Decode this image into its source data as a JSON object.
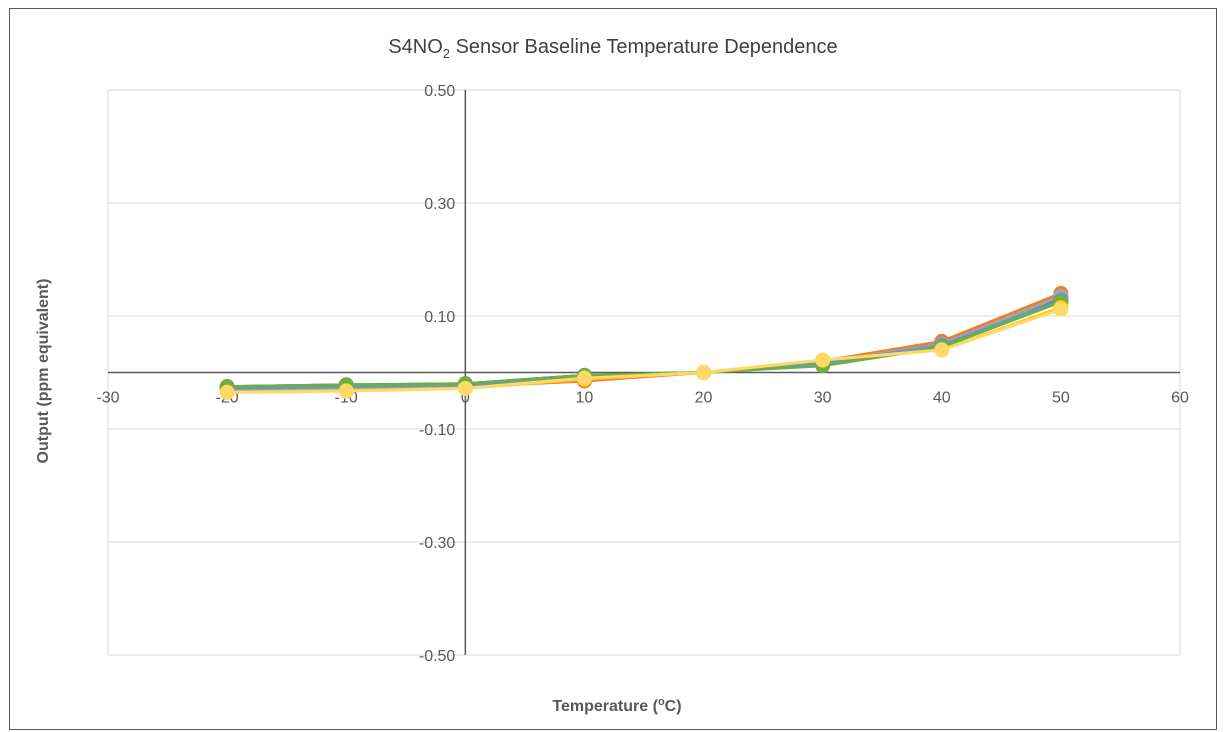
{
  "chart_data": {
    "type": "line",
    "title": {
      "prefix": "S4NO",
      "subscript": "2",
      "suffix": " Sensor Baseline Temperature Dependence"
    },
    "xlabel": {
      "prefix": "Temperature (",
      "superscript": "o",
      "suffix": "C)"
    },
    "ylabel": "Output (ppm equivalent)",
    "xlim": [
      -30,
      60
    ],
    "ylim": [
      -0.5,
      0.5
    ],
    "x_ticks": [
      -30,
      -20,
      -10,
      0,
      10,
      20,
      30,
      40,
      50,
      60
    ],
    "y_ticks": [
      -0.5,
      -0.3,
      -0.1,
      0.1,
      0.3,
      0.5
    ],
    "y_tick_labels": [
      "-0.50",
      "-0.30",
      "-0.10",
      "0.10",
      "0.30",
      "0.50"
    ],
    "grid": "horizontal",
    "legend": "none",
    "x": [
      -20,
      -10,
      0,
      10,
      20,
      30,
      40,
      50
    ],
    "series": [
      {
        "color": "#264478",
        "values": [
          -0.025,
          -0.022,
          -0.02,
          -0.005,
          0.0,
          0.015,
          0.048,
          0.13
        ]
      },
      {
        "color": "#ED7D31",
        "values": [
          -0.03,
          -0.03,
          -0.025,
          -0.015,
          0.0,
          0.02,
          0.055,
          0.14
        ]
      },
      {
        "color": "#A5A5A5",
        "values": [
          -0.032,
          -0.028,
          -0.024,
          -0.008,
          0.0,
          0.018,
          0.05,
          0.135
        ]
      },
      {
        "color": "#5B9BD5",
        "values": [
          -0.028,
          -0.025,
          -0.022,
          -0.007,
          0.0,
          0.016,
          0.048,
          0.128
        ]
      },
      {
        "color": "#70AD47",
        "values": [
          -0.025,
          -0.022,
          -0.02,
          -0.005,
          0.0,
          0.012,
          0.045,
          0.125
        ]
      },
      {
        "color": "#FFC000",
        "values": [
          -0.035,
          -0.032,
          -0.028,
          -0.012,
          0.0,
          0.022,
          0.04,
          0.115
        ]
      },
      {
        "color": "#FFD966",
        "values": [
          -0.035,
          -0.033,
          -0.028,
          -0.01,
          0.0,
          0.022,
          0.04,
          0.112
        ]
      }
    ]
  }
}
